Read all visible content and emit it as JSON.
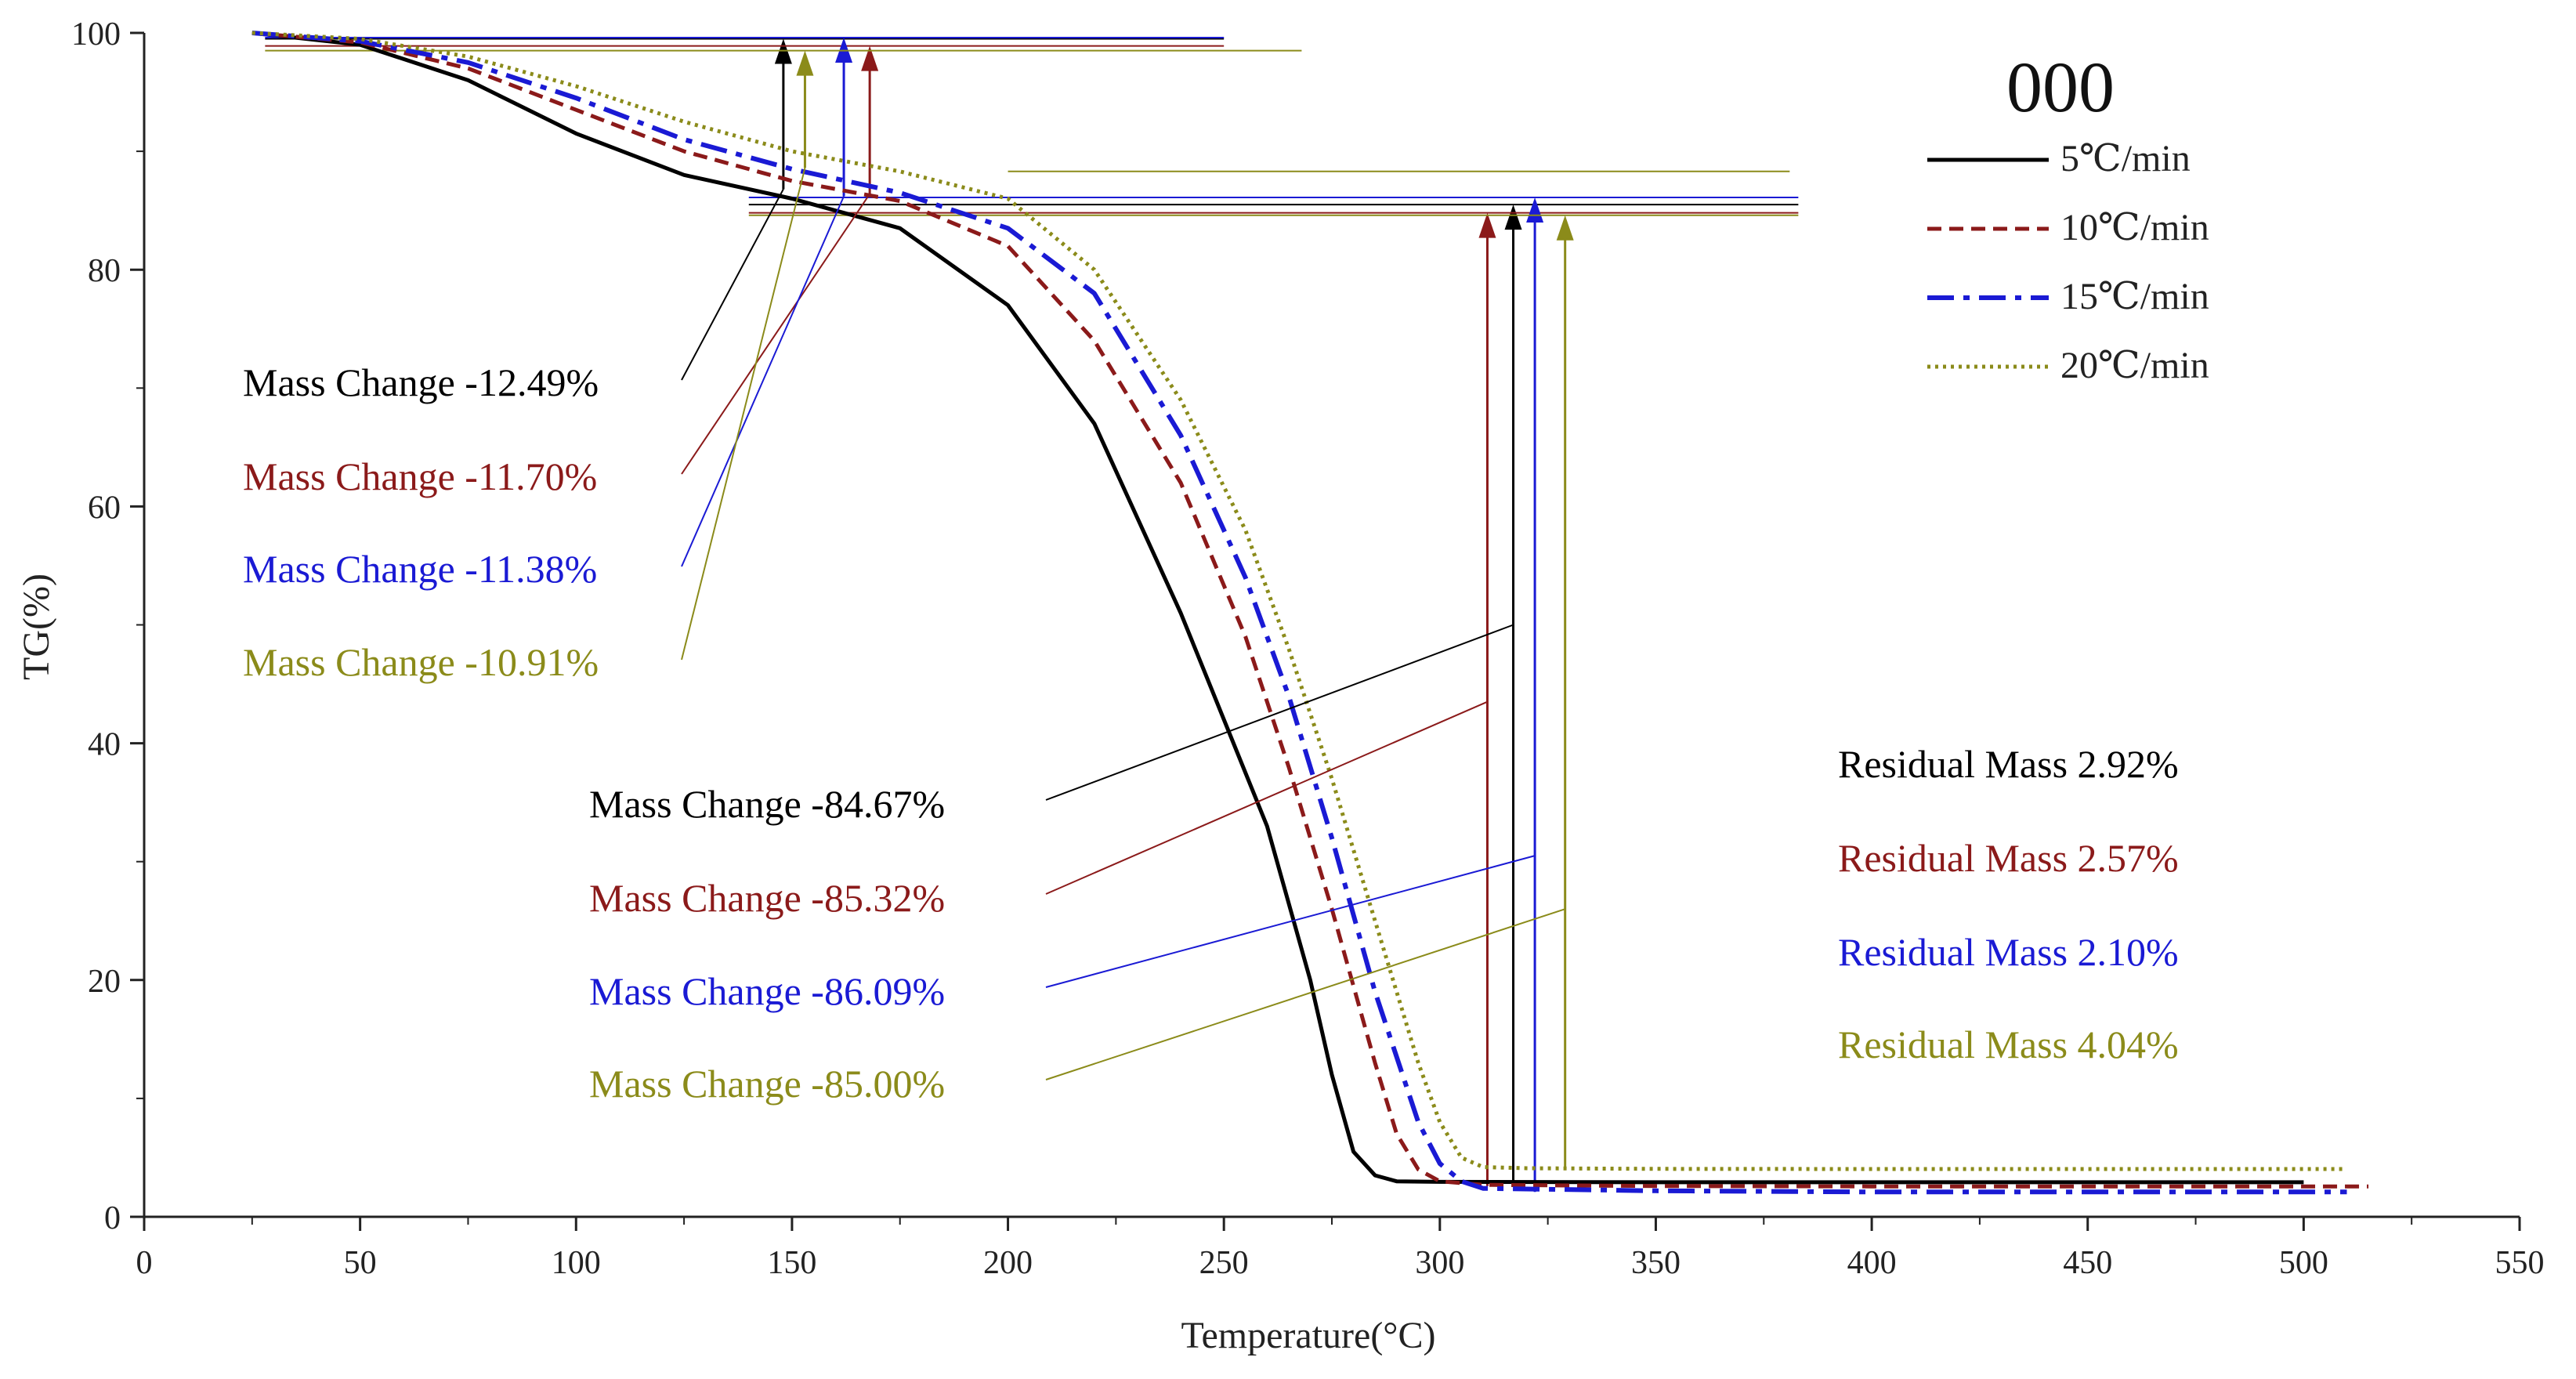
{
  "chart_data": {
    "type": "line",
    "title": "000",
    "xlabel": "Temperature(°C)",
    "ylabel": "TG(%)",
    "xlim": [
      0,
      550
    ],
    "ylim": [
      0,
      100
    ],
    "xticks": [
      "0",
      "50",
      "100",
      "150",
      "200",
      "250",
      "300",
      "350",
      "400",
      "450",
      "500",
      "550"
    ],
    "yticks": [
      "0",
      "20",
      "40",
      "60",
      "80",
      "100"
    ],
    "legend_position": "top-right",
    "series": [
      {
        "name": "5℃/min",
        "color": "#000000",
        "dash": "solid",
        "x": [
          25,
          50,
          75,
          100,
          125,
          150,
          175,
          200,
          220,
          240,
          250,
          260,
          270,
          275,
          280,
          285,
          290,
          300,
          350,
          400,
          450,
          500
        ],
        "y": [
          100,
          99.0,
          96.0,
          91.5,
          88.0,
          86.0,
          83.5,
          77.0,
          67.0,
          51.0,
          42.0,
          33.0,
          20.0,
          12.0,
          5.5,
          3.5,
          3.0,
          2.95,
          2.92,
          2.92,
          2.92,
          2.92
        ]
      },
      {
        "name": "10℃/min",
        "color": "#8b1a1a",
        "dash": "dash",
        "x": [
          25,
          50,
          75,
          100,
          125,
          150,
          175,
          200,
          220,
          240,
          255,
          265,
          275,
          285,
          290,
          295,
          300,
          310,
          350,
          400,
          450,
          515
        ],
        "y": [
          100,
          99.2,
          97.0,
          93.5,
          90.0,
          87.5,
          85.8,
          82.0,
          74.0,
          62.0,
          49.0,
          38.0,
          26.0,
          13.0,
          7.0,
          4.0,
          3.0,
          2.7,
          2.6,
          2.57,
          2.57,
          2.57
        ]
      },
      {
        "name": "15℃/min",
        "color": "#1a1ad4",
        "dash": "dashdot",
        "x": [
          25,
          50,
          75,
          100,
          125,
          150,
          175,
          200,
          220,
          240,
          255,
          265,
          275,
          285,
          295,
          300,
          305,
          310,
          350,
          400,
          450,
          510
        ],
        "y": [
          100,
          99.3,
          97.5,
          94.5,
          91.0,
          88.5,
          86.5,
          83.5,
          78.0,
          66.0,
          54.0,
          44.0,
          32.0,
          19.0,
          8.0,
          4.5,
          3.0,
          2.4,
          2.2,
          2.1,
          2.1,
          2.1
        ]
      },
      {
        "name": "20℃/min",
        "color": "#8b8b1a",
        "dash": "dot",
        "x": [
          25,
          50,
          75,
          100,
          125,
          150,
          175,
          200,
          220,
          240,
          255,
          265,
          275,
          285,
          295,
          300,
          305,
          310,
          320,
          350,
          400,
          450,
          510
        ],
        "y": [
          100,
          99.5,
          98.0,
          95.5,
          92.5,
          90.0,
          88.3,
          86.0,
          80.0,
          69.0,
          58.0,
          48.0,
          37.0,
          25.0,
          13.0,
          8.0,
          5.0,
          4.2,
          4.1,
          4.05,
          4.04,
          4.04,
          4.04
        ]
      }
    ],
    "annotations": {
      "stage1": [
        {
          "text": "Mass Change -12.49%",
          "color": "#000000"
        },
        {
          "text": "Mass Change -11.70%",
          "color": "#8b1a1a"
        },
        {
          "text": "Mass Change -11.38%",
          "color": "#1a1ad4"
        },
        {
          "text": "Mass Change -10.91%",
          "color": "#8b8b1a"
        }
      ],
      "stage2": [
        {
          "text": "Mass Change -84.67%",
          "color": "#000000"
        },
        {
          "text": "Mass Change -85.32%",
          "color": "#8b1a1a"
        },
        {
          "text": "Mass Change -86.09%",
          "color": "#1a1ad4"
        },
        {
          "text": "Mass Change -85.00%",
          "color": "#8b8b1a"
        }
      ],
      "residual": [
        {
          "text": "Residual Mass 2.92%",
          "color": "#000000"
        },
        {
          "text": "Residual Mass 2.57%",
          "color": "#8b1a1a"
        },
        {
          "text": "Residual Mass 2.10%",
          "color": "#1a1ad4"
        },
        {
          "text": "Residual Mass 4.04%",
          "color": "#8b8b1a"
        }
      ]
    },
    "stage1_markers": [
      {
        "temp": 148,
        "top": 99.5,
        "bottom": 86.8,
        "color": "#000000"
      },
      {
        "temp": 168,
        "top": 98.9,
        "bottom": 86.4,
        "color": "#8b1a1a"
      },
      {
        "temp": 162,
        "top": 99.6,
        "bottom": 86.2,
        "color": "#1a1ad4"
      },
      {
        "temp": 153,
        "top": 98.5,
        "bottom": 88.6,
        "color": "#8b8b1a"
      }
    ],
    "stage2_markers": [
      {
        "temp": 317,
        "top": 85.5,
        "bottom": 2.9,
        "color": "#000000"
      },
      {
        "temp": 311,
        "top": 84.8,
        "bottom": 2.6,
        "color": "#8b1a1a"
      },
      {
        "temp": 322,
        "top": 86.1,
        "bottom": 2.1,
        "color": "#1a1ad4"
      },
      {
        "temp": 329,
        "top": 84.6,
        "bottom": 4.0,
        "color": "#8b8b1a"
      }
    ]
  }
}
